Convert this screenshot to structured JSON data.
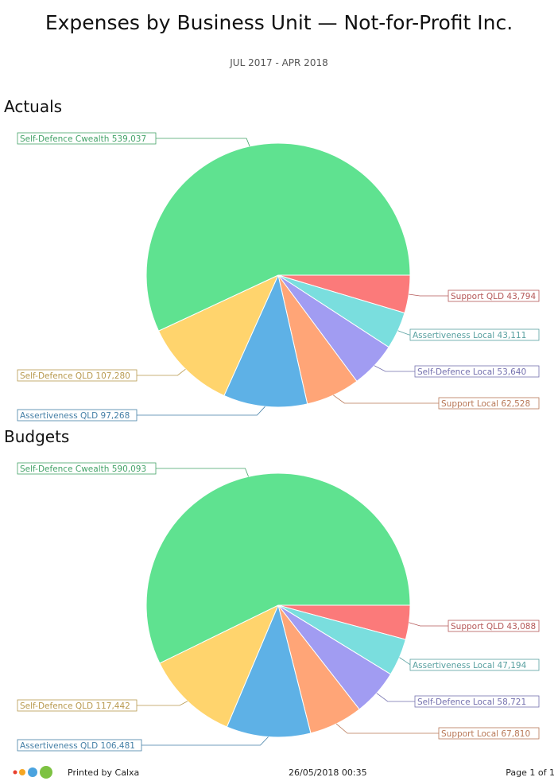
{
  "header": {
    "title": "Expenses by Business Unit — Not-for-Profit Inc.",
    "subtitle": "JUL 2017 - APR 2018"
  },
  "chart_data": [
    {
      "type": "pie",
      "title": "Actuals",
      "labels": [
        "Support QLD",
        "Assertiveness Local",
        "Self-Defence Local",
        "Support Local",
        "Assertiveness QLD",
        "Self-Defence QLD",
        "Self-Defence Cwealth"
      ],
      "values": [
        43794,
        43111,
        53640,
        62528,
        97268,
        107280,
        539037
      ],
      "display_values": [
        "43,794",
        "43,111",
        "53,640",
        "62,528",
        "97,268",
        "107,280",
        "539,037"
      ],
      "colors": [
        "#fb7a7a",
        "#7adede",
        "#a19cf2",
        "#ffa577",
        "#5eb1e6",
        "#ffd46d",
        "#5fe290"
      ]
    },
    {
      "type": "pie",
      "title": "Budgets",
      "labels": [
        "Support QLD",
        "Assertiveness Local",
        "Self-Defence Local",
        "Support Local",
        "Assertiveness QLD",
        "Self-Defence QLD",
        "Self-Defence Cwealth"
      ],
      "values": [
        43088,
        47194,
        58721,
        67810,
        106481,
        117442,
        590093
      ],
      "display_values": [
        "43,088",
        "47,194",
        "58,721",
        "67,810",
        "106,481",
        "117,442",
        "590,093"
      ],
      "colors": [
        "#fb7a7a",
        "#7adede",
        "#a19cf2",
        "#ffa577",
        "#5eb1e6",
        "#ffd46d",
        "#5fe290"
      ]
    }
  ],
  "footer": {
    "printed_by": "Printed by Calxa",
    "timestamp": "26/05/2018 00:35",
    "page": "Page 1 of 1",
    "logo_colors": [
      "#e8402f",
      "#f5a623",
      "#4aa3df",
      "#7dc242"
    ]
  }
}
